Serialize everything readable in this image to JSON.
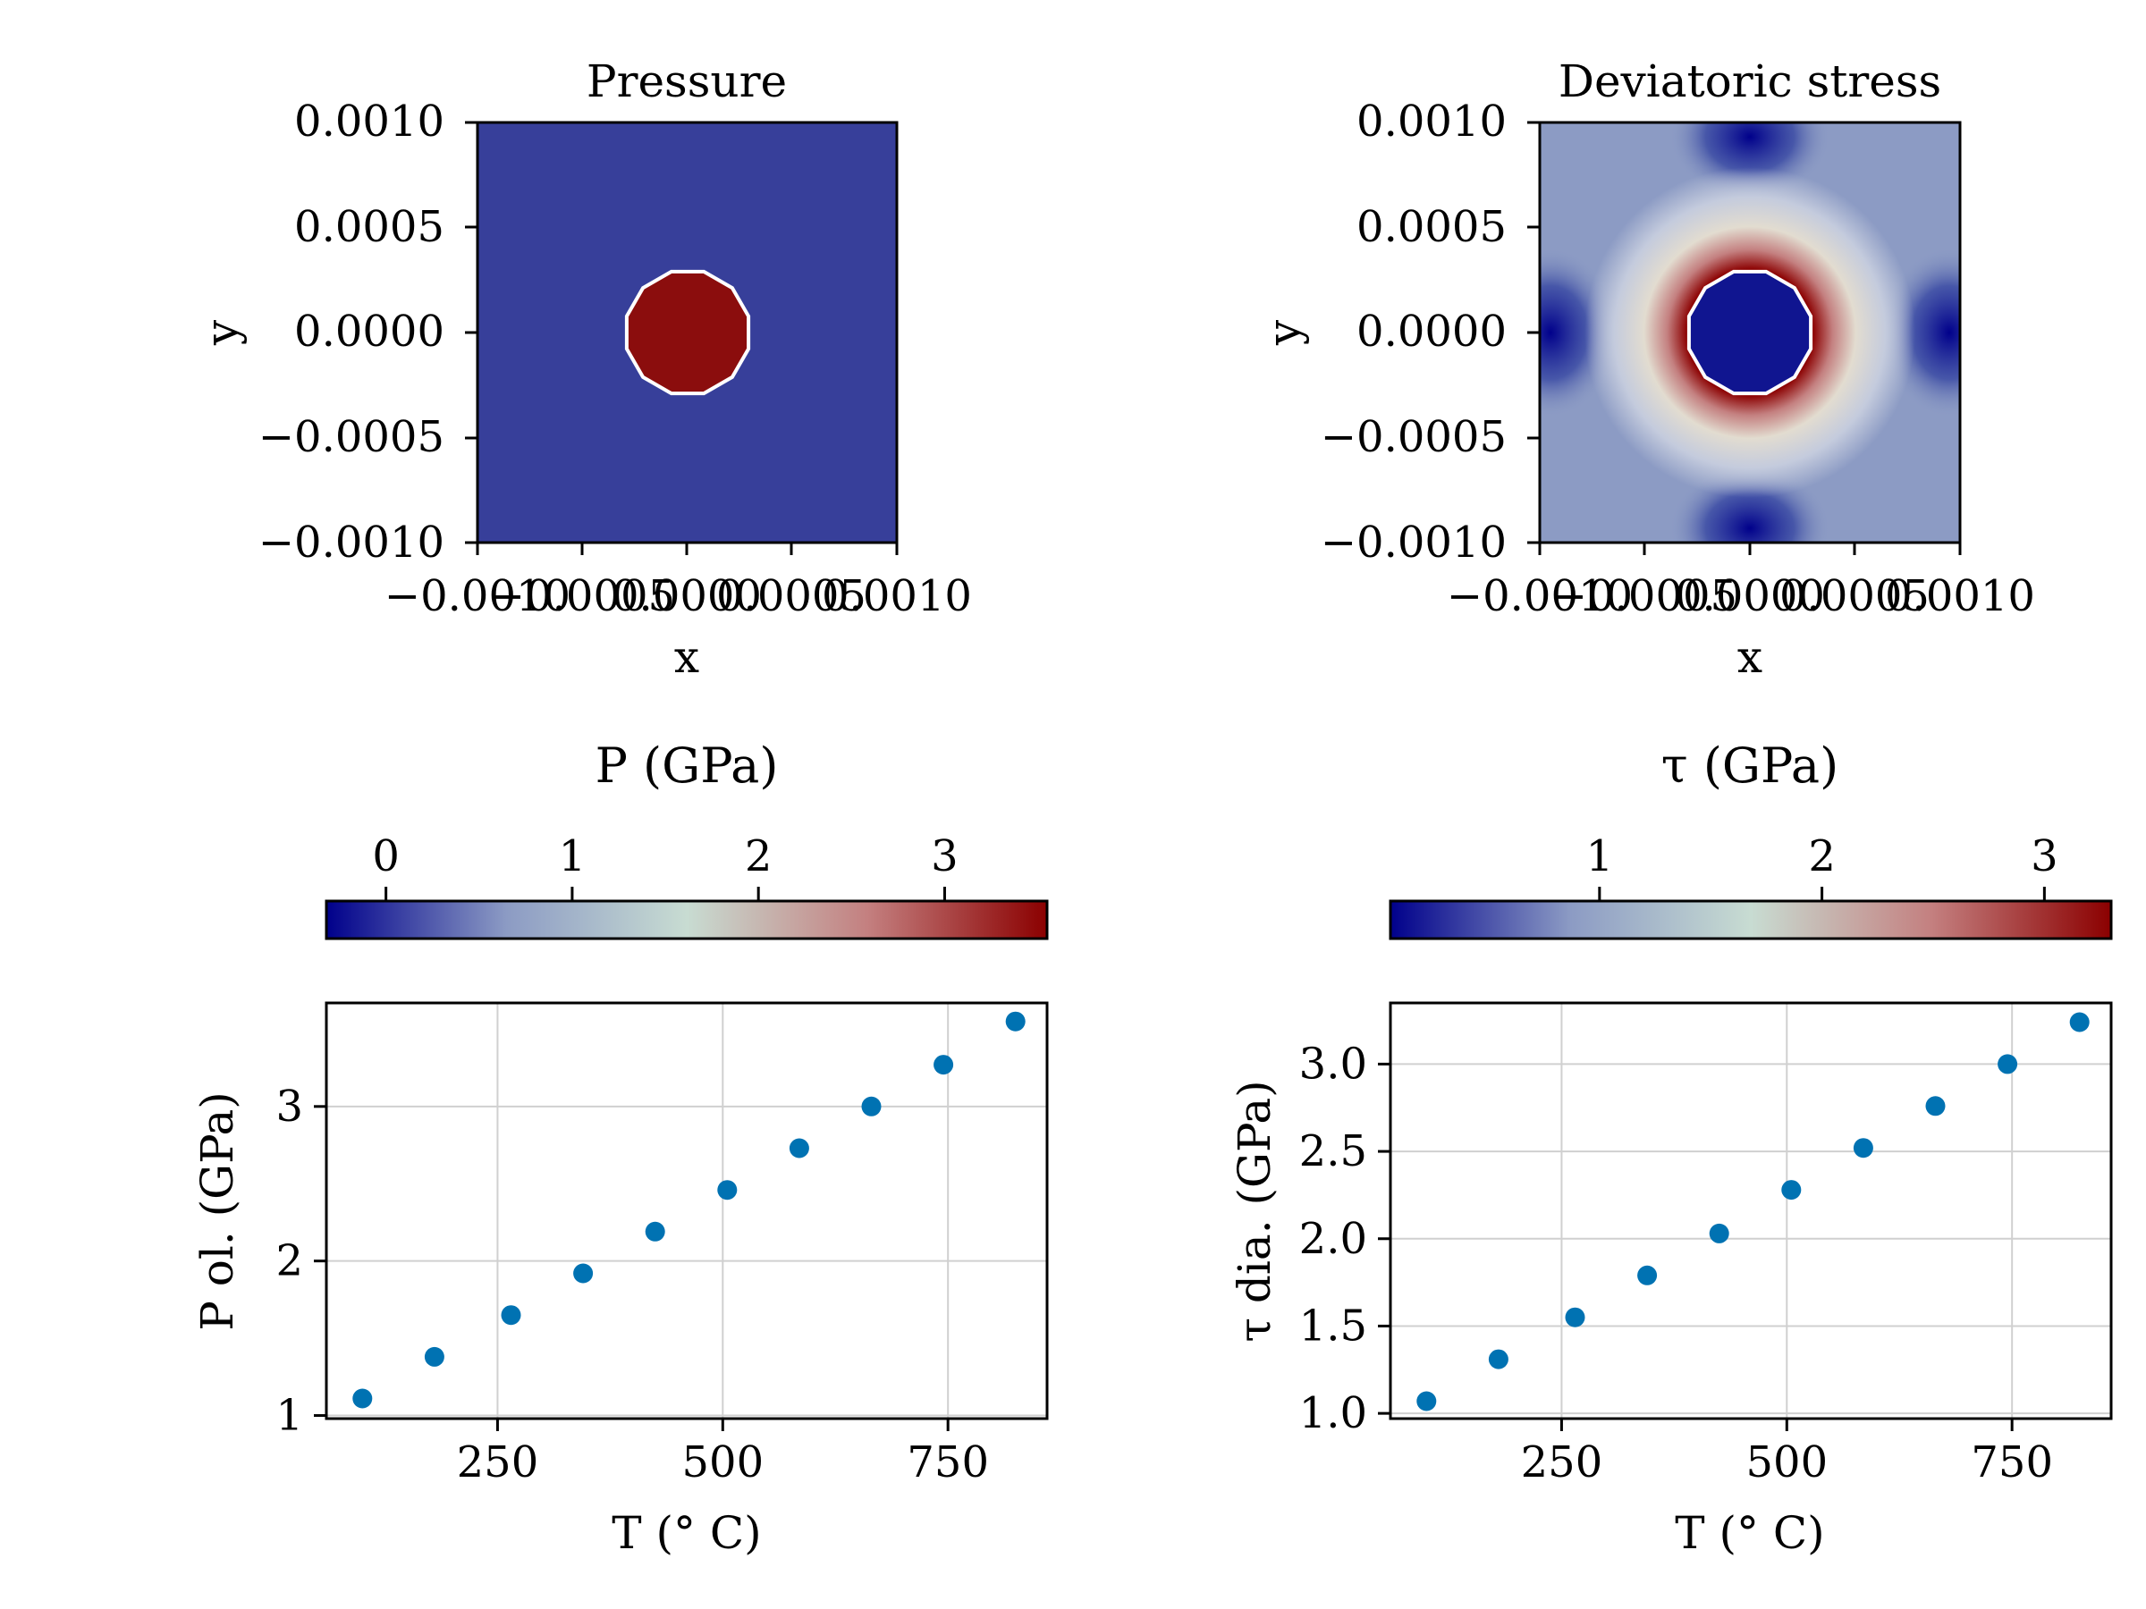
{
  "chart_data": [
    {
      "type": "heatmap",
      "title": "Pressure",
      "xlabel": "x",
      "ylabel": "y",
      "xlim": [
        -0.001,
        0.001
      ],
      "ylim": [
        -0.001,
        0.001
      ],
      "x_ticks": [
        -0.001,
        -0.0005,
        0.0,
        0.0005,
        0.001
      ],
      "x_tick_labels": [
        "−0.0010",
        "−0.0005",
        "0.0000",
        "0.0005",
        "0.0010"
      ],
      "y_ticks": [
        0.001,
        0.0005,
        0.0,
        -0.0005,
        -0.001
      ],
      "y_tick_labels": [
        "0.0010",
        "0.0005",
        "0.0000",
        "−0.0005",
        "−0.0010"
      ],
      "inclusion": {
        "center": [
          0.0,
          0.0
        ],
        "radius": 0.0003
      },
      "inside_value": 3.5,
      "outside_value": -0.1,
      "colorbar": {
        "label": "P (GPa)",
        "range": [
          -0.32,
          3.55
        ],
        "ticks": [
          0,
          1,
          2,
          3
        ],
        "tick_labels": [
          "0",
          "1",
          "2",
          "3"
        ],
        "colormap": [
          "#00008b",
          "#8c9bc4",
          "#c8dcd2",
          "#c48080",
          "#8b0000"
        ]
      }
    },
    {
      "type": "heatmap",
      "title": "Deviatoric stress",
      "xlabel": "x",
      "ylabel": "y",
      "xlim": [
        -0.001,
        0.001
      ],
      "ylim": [
        -0.001,
        0.001
      ],
      "x_ticks": [
        -0.001,
        -0.0005,
        0.0,
        0.0005,
        0.001
      ],
      "x_tick_labels": [
        "−0.0010",
        "−0.0005",
        "0.0000",
        "0.0005",
        "0.0010"
      ],
      "y_ticks": [
        0.001,
        0.0005,
        0.0,
        -0.0005,
        -0.001
      ],
      "y_tick_labels": [
        "0.0010",
        "0.0005",
        "0.0000",
        "−0.0005",
        "−0.0010"
      ],
      "inclusion": {
        "center": [
          0.0,
          0.0
        ],
        "radius": 0.0003
      },
      "colorbar": {
        "label": "τ (GPa)",
        "range": [
          0.06,
          3.3
        ],
        "ticks": [
          1,
          2,
          3
        ],
        "tick_labels": [
          "1",
          "2",
          "3"
        ],
        "colormap": [
          "#00008b",
          "#8c9bc4",
          "#c8dcd2",
          "#c48080",
          "#8b0000"
        ]
      }
    },
    {
      "type": "scatter",
      "title": "",
      "xlabel": "T (° C)",
      "ylabel": "P ol. (GPa)",
      "xlim": [
        60,
        860
      ],
      "ylim": [
        0.98,
        3.67
      ],
      "x_ticks": [
        250,
        500,
        750
      ],
      "x_tick_labels": [
        "250",
        "500",
        "750"
      ],
      "y_ticks": [
        1,
        2,
        3
      ],
      "y_tick_labels": [
        "1",
        "2",
        "3"
      ],
      "grid": true,
      "color": "#0072b2",
      "x": [
        100,
        180,
        265,
        345,
        425,
        505,
        585,
        665,
        745,
        825
      ],
      "y": [
        1.11,
        1.38,
        1.65,
        1.92,
        2.19,
        2.46,
        2.73,
        3.0,
        3.27,
        3.55
      ]
    },
    {
      "type": "scatter",
      "title": "",
      "xlabel": "T (° C)",
      "ylabel": "τ dia. (GPa)",
      "xlim": [
        60,
        860
      ],
      "ylim": [
        0.97,
        3.35
      ],
      "x_ticks": [
        250,
        500,
        750
      ],
      "x_tick_labels": [
        "250",
        "500",
        "750"
      ],
      "y_ticks": [
        1.0,
        1.5,
        2.0,
        2.5,
        3.0
      ],
      "y_tick_labels": [
        "1.0",
        "1.5",
        "2.0",
        "2.5",
        "3.0"
      ],
      "grid": true,
      "color": "#0072b2",
      "x": [
        100,
        180,
        265,
        345,
        425,
        505,
        585,
        665,
        745,
        825
      ],
      "y": [
        1.07,
        1.31,
        1.55,
        1.79,
        2.03,
        2.28,
        2.52,
        2.76,
        3.0,
        3.24
      ]
    }
  ]
}
